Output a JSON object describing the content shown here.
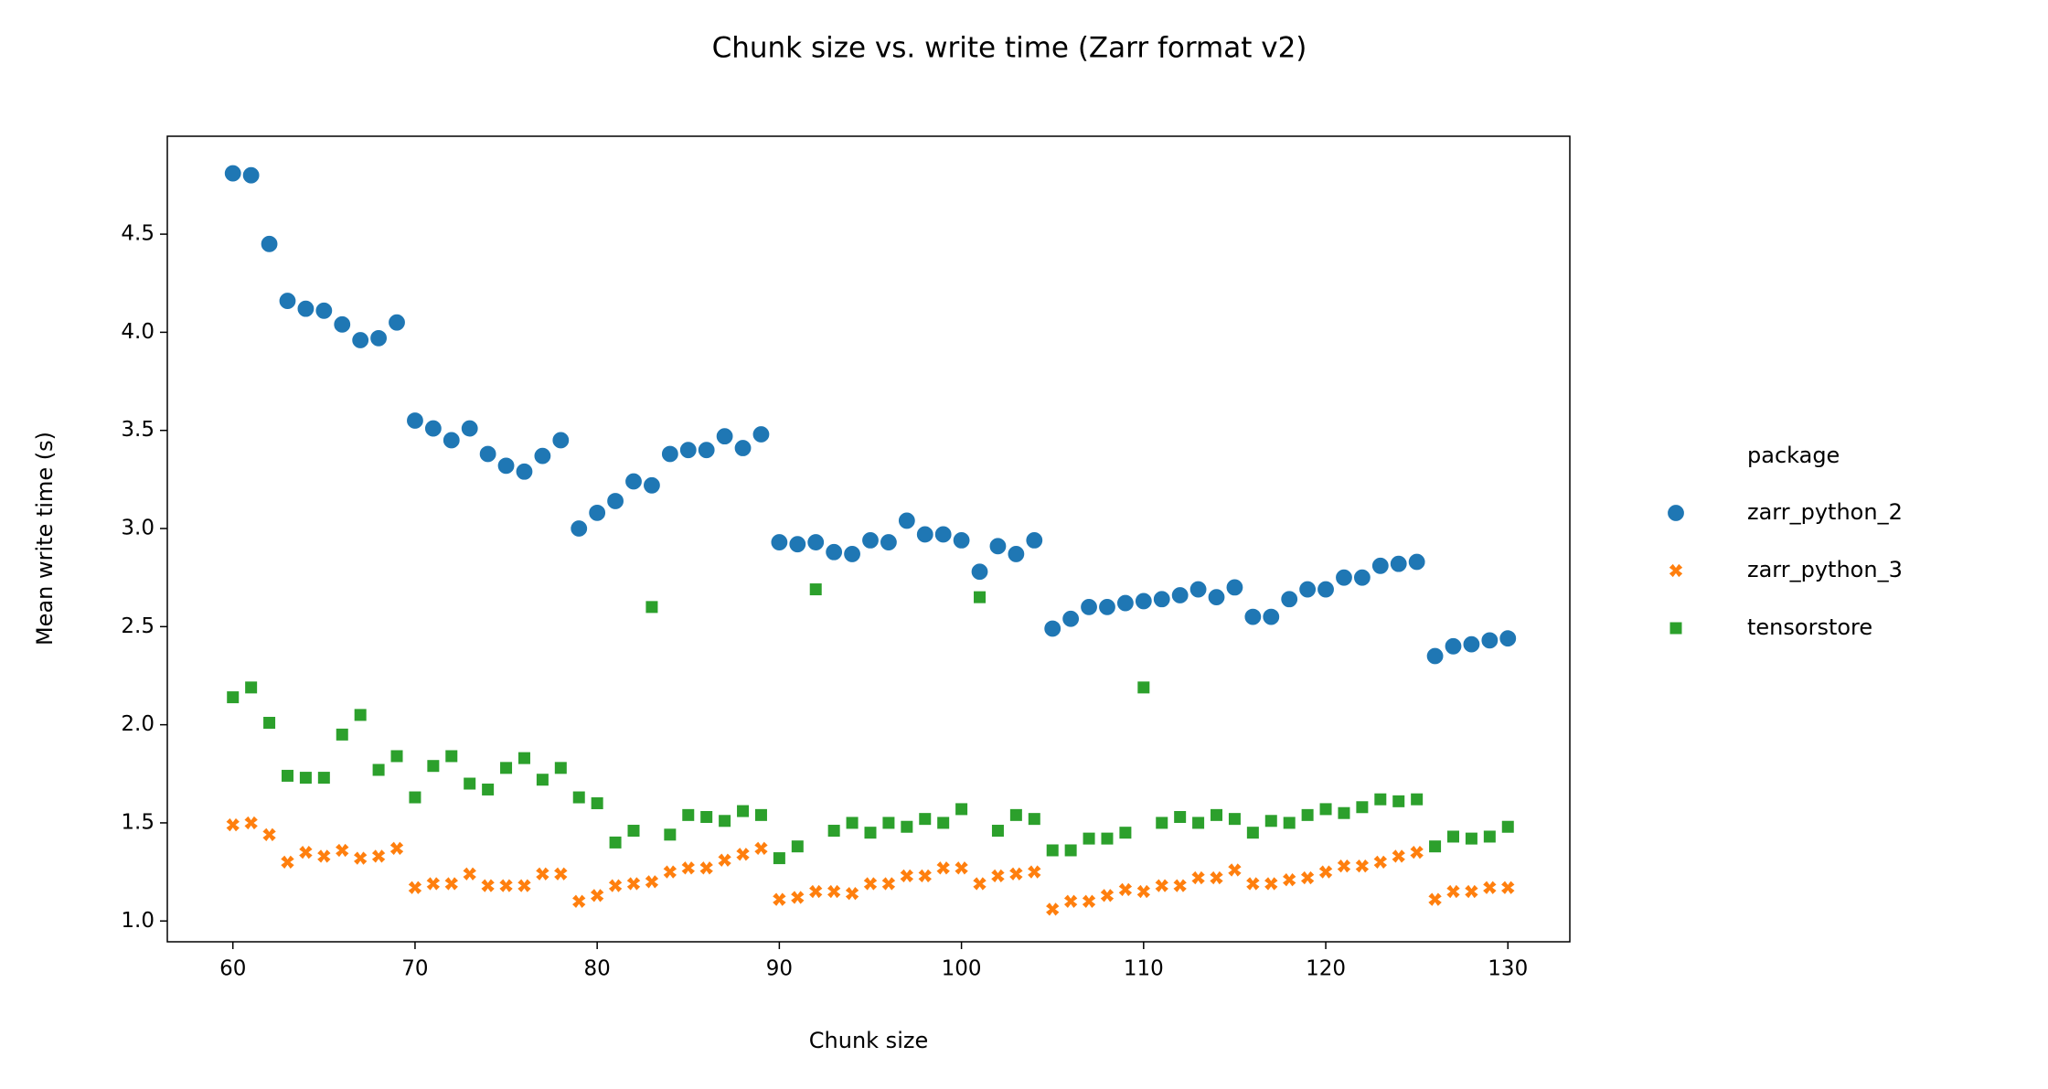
{
  "chart_data": {
    "type": "scatter",
    "title": "Chunk size vs. write time (Zarr format v2)",
    "x_label": "Chunk size",
    "y_label": "Mean write time (s)",
    "legend_title": "package",
    "legend_position": "outside right",
    "x": [
      60,
      61,
      62,
      63,
      64,
      65,
      66,
      67,
      68,
      69,
      70,
      71,
      72,
      73,
      74,
      75,
      76,
      77,
      78,
      79,
      80,
      81,
      82,
      83,
      84,
      85,
      86,
      87,
      88,
      89,
      90,
      91,
      92,
      93,
      94,
      95,
      96,
      97,
      98,
      99,
      100,
      101,
      102,
      103,
      104,
      105,
      106,
      107,
      108,
      109,
      110,
      111,
      112,
      113,
      114,
      115,
      116,
      117,
      118,
      119,
      120,
      121,
      122,
      123,
      124,
      125,
      126,
      127,
      128,
      129,
      130
    ],
    "series": [
      {
        "name": "zarr_python_2",
        "color": "#1f77b4",
        "marker": "circle",
        "values": [
          4.81,
          4.8,
          4.45,
          4.16,
          4.12,
          4.11,
          4.04,
          3.96,
          3.97,
          4.05,
          3.55,
          3.51,
          3.45,
          3.51,
          3.38,
          3.32,
          3.29,
          3.37,
          3.45,
          3.0,
          3.08,
          3.14,
          3.24,
          3.22,
          3.38,
          3.4,
          3.4,
          3.47,
          3.41,
          3.48,
          2.93,
          2.92,
          2.93,
          2.88,
          2.87,
          2.94,
          2.93,
          3.04,
          2.97,
          2.97,
          2.94,
          2.78,
          2.91,
          2.87,
          2.94,
          2.49,
          2.54,
          2.6,
          2.6,
          2.62,
          2.63,
          2.64,
          2.66,
          2.69,
          2.65,
          2.7,
          2.55,
          2.55,
          2.64,
          2.69,
          2.69,
          2.75,
          2.75,
          2.81,
          2.82,
          2.83,
          2.35,
          2.4,
          2.41,
          2.43,
          2.44
        ]
      },
      {
        "name": "zarr_python_3",
        "color": "#ff7f0e",
        "marker": "x",
        "values": [
          1.49,
          1.5,
          1.44,
          1.3,
          1.35,
          1.33,
          1.36,
          1.32,
          1.33,
          1.37,
          1.17,
          1.19,
          1.19,
          1.24,
          1.18,
          1.18,
          1.18,
          1.24,
          1.24,
          1.1,
          1.13,
          1.18,
          1.19,
          1.2,
          1.25,
          1.27,
          1.27,
          1.31,
          1.34,
          1.37,
          1.11,
          1.12,
          1.15,
          1.15,
          1.14,
          1.19,
          1.19,
          1.23,
          1.23,
          1.27,
          1.27,
          1.19,
          1.23,
          1.24,
          1.25,
          1.06,
          1.1,
          1.1,
          1.13,
          1.16,
          1.15,
          1.18,
          1.18,
          1.22,
          1.22,
          1.26,
          1.19,
          1.19,
          1.21,
          1.22,
          1.25,
          1.28,
          1.28,
          1.3,
          1.33,
          1.35,
          1.11,
          1.15,
          1.15,
          1.17,
          1.17
        ]
      },
      {
        "name": "tensorstore",
        "color": "#2ca02c",
        "marker": "square",
        "values": [
          2.14,
          2.19,
          2.01,
          1.74,
          1.73,
          1.73,
          1.95,
          2.05,
          1.77,
          1.84,
          1.63,
          1.79,
          1.84,
          1.7,
          1.67,
          1.78,
          1.83,
          1.72,
          1.78,
          1.63,
          1.6,
          1.4,
          1.46,
          2.6,
          1.44,
          1.54,
          1.53,
          1.51,
          1.56,
          1.54,
          1.32,
          1.38,
          2.69,
          1.46,
          1.5,
          1.45,
          1.5,
          1.48,
          1.52,
          1.5,
          1.57,
          2.65,
          1.46,
          1.54,
          1.52,
          1.36,
          1.36,
          1.42,
          1.42,
          1.45,
          2.19,
          1.5,
          1.53,
          1.5,
          1.54,
          1.52,
          1.45,
          1.51,
          1.5,
          1.54,
          1.57,
          1.55,
          1.58,
          1.62,
          1.61,
          1.62,
          1.38,
          1.43,
          1.42,
          1.43,
          1.48
        ]
      }
    ],
    "xlim": [
      56.4,
      133.4
    ],
    "xticks": [
      60,
      70,
      80,
      90,
      100,
      110,
      120,
      130
    ],
    "ylim": [
      0.894,
      4.999
    ],
    "yticks": [
      {
        "value": 1,
        "label": "1.0"
      },
      1.5,
      {
        "value": 2,
        "label": "2.0"
      },
      2.5,
      {
        "value": 3,
        "label": "3.0"
      },
      3.5,
      {
        "value": 4,
        "label": "4.0"
      },
      4.5
    ],
    "grid": false
  }
}
